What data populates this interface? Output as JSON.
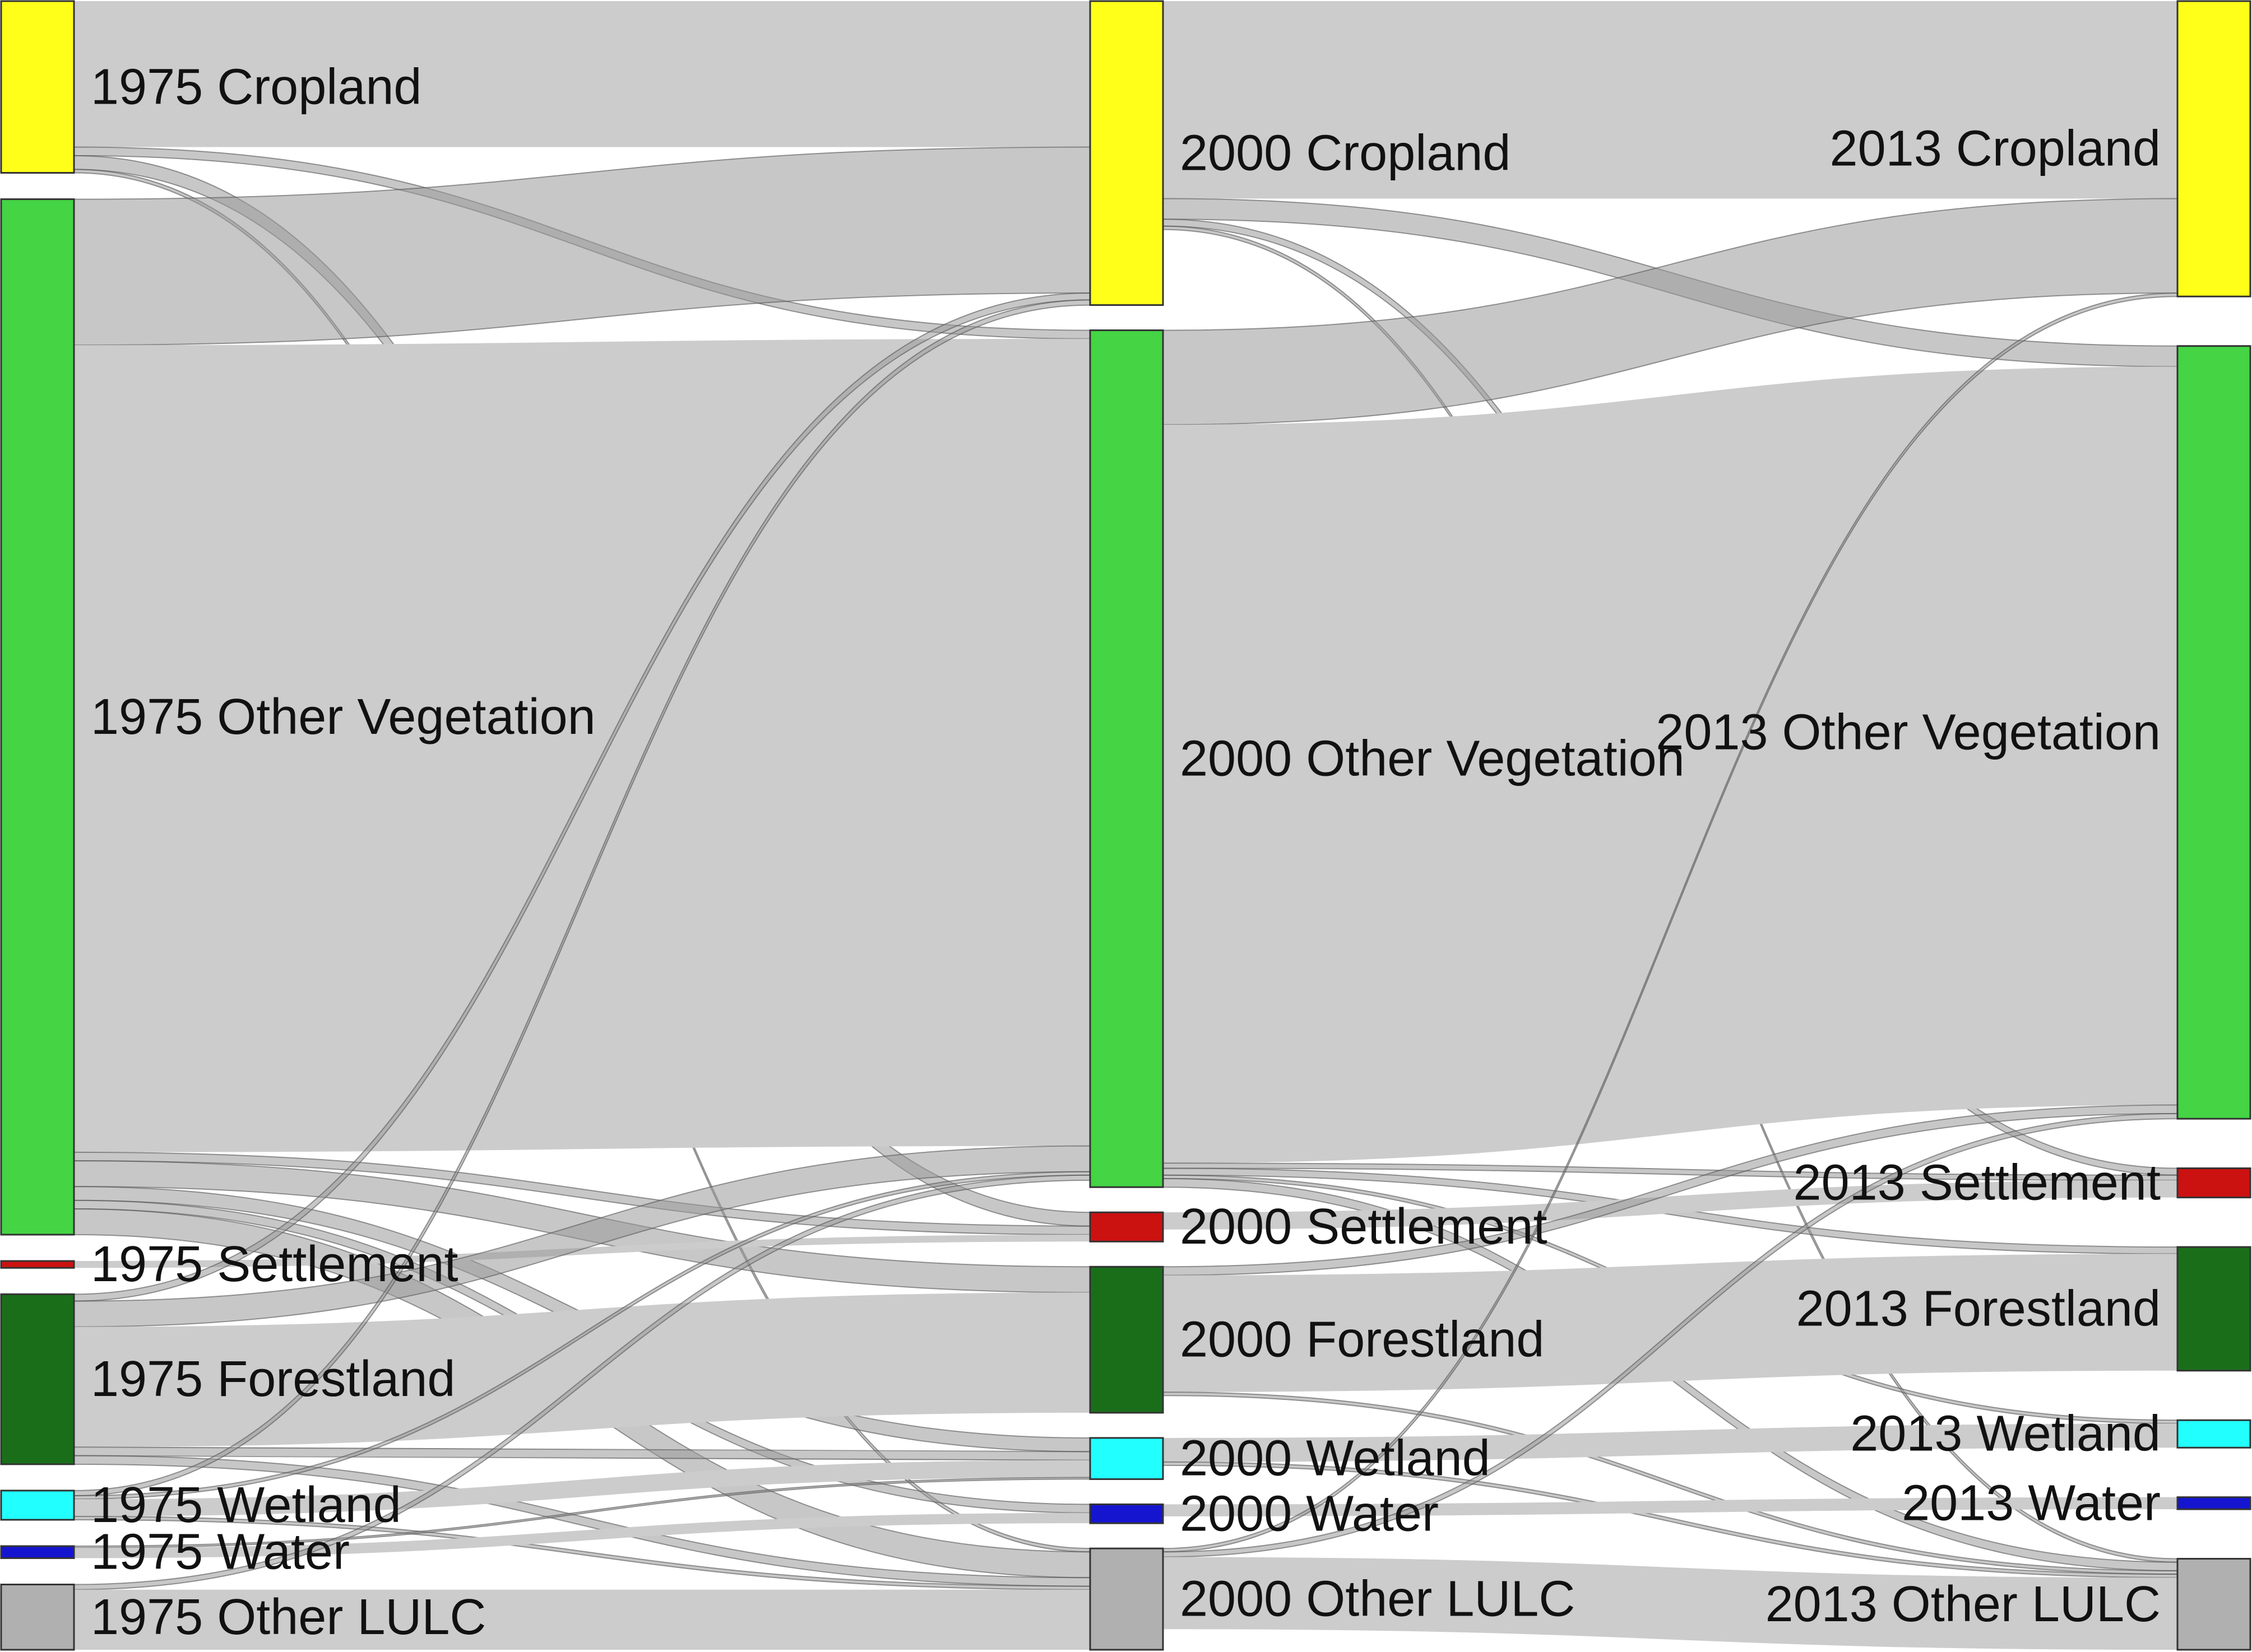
{
  "colors": {
    "cropland": "#ffff1a",
    "other_vegetation": "#44d444",
    "settlement": "#cc1111",
    "forestland": "#1a6e1a",
    "wetland": "#22ffff",
    "water": "#1515d0",
    "other_lulc": "#b0b0b0",
    "flow": "#cccccc",
    "flow_dark": "#999999"
  },
  "columns": [
    {
      "year": "1975",
      "nodes": [
        {
          "id": "c75",
          "label": "1975 Cropland",
          "color_key": "cropland",
          "icon": "cropland-node"
        },
        {
          "id": "v75",
          "label": "1975 Other Vegetation",
          "color_key": "other_vegetation",
          "icon": "vegetation-node"
        },
        {
          "id": "s75",
          "label": "1975 Settlement",
          "color_key": "settlement",
          "icon": "settlement-node"
        },
        {
          "id": "f75",
          "label": "1975 Forestland",
          "color_key": "forestland",
          "icon": "forest-node"
        },
        {
          "id": "w75",
          "label": "1975 Wetland",
          "color_key": "wetland",
          "icon": "wetland-node"
        },
        {
          "id": "h75",
          "label": "1975 Water",
          "color_key": "water",
          "icon": "water-node"
        },
        {
          "id": "o75",
          "label": "1975 Other LULC",
          "color_key": "other_lulc",
          "icon": "other-node"
        }
      ]
    },
    {
      "year": "2000",
      "nodes": [
        {
          "id": "c00",
          "label": "2000 Cropland",
          "color_key": "cropland",
          "icon": "cropland-node"
        },
        {
          "id": "v00",
          "label": "2000 Other Vegetation",
          "color_key": "other_vegetation",
          "icon": "vegetation-node"
        },
        {
          "id": "s00",
          "label": "2000 Settlement",
          "color_key": "settlement",
          "icon": "settlement-node"
        },
        {
          "id": "f00",
          "label": "2000 Forestland",
          "color_key": "forestland",
          "icon": "forest-node"
        },
        {
          "id": "w00",
          "label": "2000 Wetland",
          "color_key": "wetland",
          "icon": "wetland-node"
        },
        {
          "id": "h00",
          "label": "2000 Water",
          "color_key": "water",
          "icon": "water-node"
        },
        {
          "id": "o00",
          "label": "2000 Other LULC",
          "color_key": "other_lulc",
          "icon": "other-node"
        }
      ]
    },
    {
      "year": "2013",
      "nodes": [
        {
          "id": "c13",
          "label": "2013 Cropland",
          "color_key": "cropland",
          "icon": "cropland-node"
        },
        {
          "id": "v13",
          "label": "2013 Other Vegetation",
          "color_key": "other_vegetation",
          "icon": "vegetation-node"
        },
        {
          "id": "s13",
          "label": "2013 Settlement",
          "color_key": "settlement",
          "icon": "settlement-node"
        },
        {
          "id": "f13",
          "label": "2013 Forestland",
          "color_key": "forestland",
          "icon": "forest-node"
        },
        {
          "id": "w13",
          "label": "2013 Wetland",
          "color_key": "wetland",
          "icon": "wetland-node"
        },
        {
          "id": "h13",
          "label": "2013 Water",
          "color_key": "water",
          "icon": "water-node"
        },
        {
          "id": "o13",
          "label": "2013 Other LULC",
          "color_key": "other_lulc",
          "icon": "other-node"
        }
      ]
    }
  ],
  "flows": [
    {
      "from": "c75",
      "to": "c00",
      "value": 0.85
    },
    {
      "from": "c75",
      "to": "v00",
      "value": 0.05
    },
    {
      "from": "c75",
      "to": "s00",
      "value": 0.08
    },
    {
      "from": "c75",
      "to": "o00",
      "value": 0.02
    },
    {
      "from": "v75",
      "to": "c00",
      "value": 0.85
    },
    {
      "from": "v75",
      "to": "v00",
      "value": 4.7
    },
    {
      "from": "v75",
      "to": "s00",
      "value": 0.05
    },
    {
      "from": "v75",
      "to": "f00",
      "value": 0.15
    },
    {
      "from": "v75",
      "to": "w00",
      "value": 0.08
    },
    {
      "from": "v75",
      "to": "h00",
      "value": 0.05
    },
    {
      "from": "v75",
      "to": "o00",
      "value": 0.15
    },
    {
      "from": "s75",
      "to": "s00",
      "value": 0.04
    },
    {
      "from": "f75",
      "to": "c00",
      "value": 0.04
    },
    {
      "from": "f75",
      "to": "v00",
      "value": 0.15
    },
    {
      "from": "f75",
      "to": "f00",
      "value": 0.7
    },
    {
      "from": "f75",
      "to": "w00",
      "value": 0.05
    },
    {
      "from": "f75",
      "to": "o00",
      "value": 0.05
    },
    {
      "from": "w75",
      "to": "c00",
      "value": 0.03
    },
    {
      "from": "w75",
      "to": "v00",
      "value": 0.02
    },
    {
      "from": "w75",
      "to": "w00",
      "value": 0.1
    },
    {
      "from": "w75",
      "to": "o00",
      "value": 0.02
    },
    {
      "from": "h75",
      "to": "h00",
      "value": 0.06
    },
    {
      "from": "h75",
      "to": "w00",
      "value": 0.01
    },
    {
      "from": "o75",
      "to": "v00",
      "value": 0.03
    },
    {
      "from": "o75",
      "to": "o00",
      "value": 0.35
    },
    {
      "from": "c00",
      "to": "c13",
      "value": 1.15
    },
    {
      "from": "c00",
      "to": "v13",
      "value": 0.12
    },
    {
      "from": "c00",
      "to": "s13",
      "value": 0.04
    },
    {
      "from": "c00",
      "to": "o13",
      "value": 0.02
    },
    {
      "from": "v00",
      "to": "c13",
      "value": 0.55
    },
    {
      "from": "v00",
      "to": "v13",
      "value": 4.3
    },
    {
      "from": "v00",
      "to": "s13",
      "value": 0.03
    },
    {
      "from": "v00",
      "to": "f13",
      "value": 0.04
    },
    {
      "from": "v00",
      "to": "w13",
      "value": 0.02
    },
    {
      "from": "v00",
      "to": "o13",
      "value": 0.05
    },
    {
      "from": "s00",
      "to": "s13",
      "value": 0.1
    },
    {
      "from": "f00",
      "to": "v13",
      "value": 0.05
    },
    {
      "from": "f00",
      "to": "f13",
      "value": 0.68
    },
    {
      "from": "f00",
      "to": "o13",
      "value": 0.02
    },
    {
      "from": "w00",
      "to": "w13",
      "value": 0.14
    },
    {
      "from": "w00",
      "to": "o13",
      "value": 0.02
    },
    {
      "from": "h00",
      "to": "h13",
      "value": 0.07
    },
    {
      "from": "o00",
      "to": "c13",
      "value": 0.02
    },
    {
      "from": "o00",
      "to": "v13",
      "value": 0.03
    },
    {
      "from": "o00",
      "to": "o13",
      "value": 0.42
    }
  ]
}
